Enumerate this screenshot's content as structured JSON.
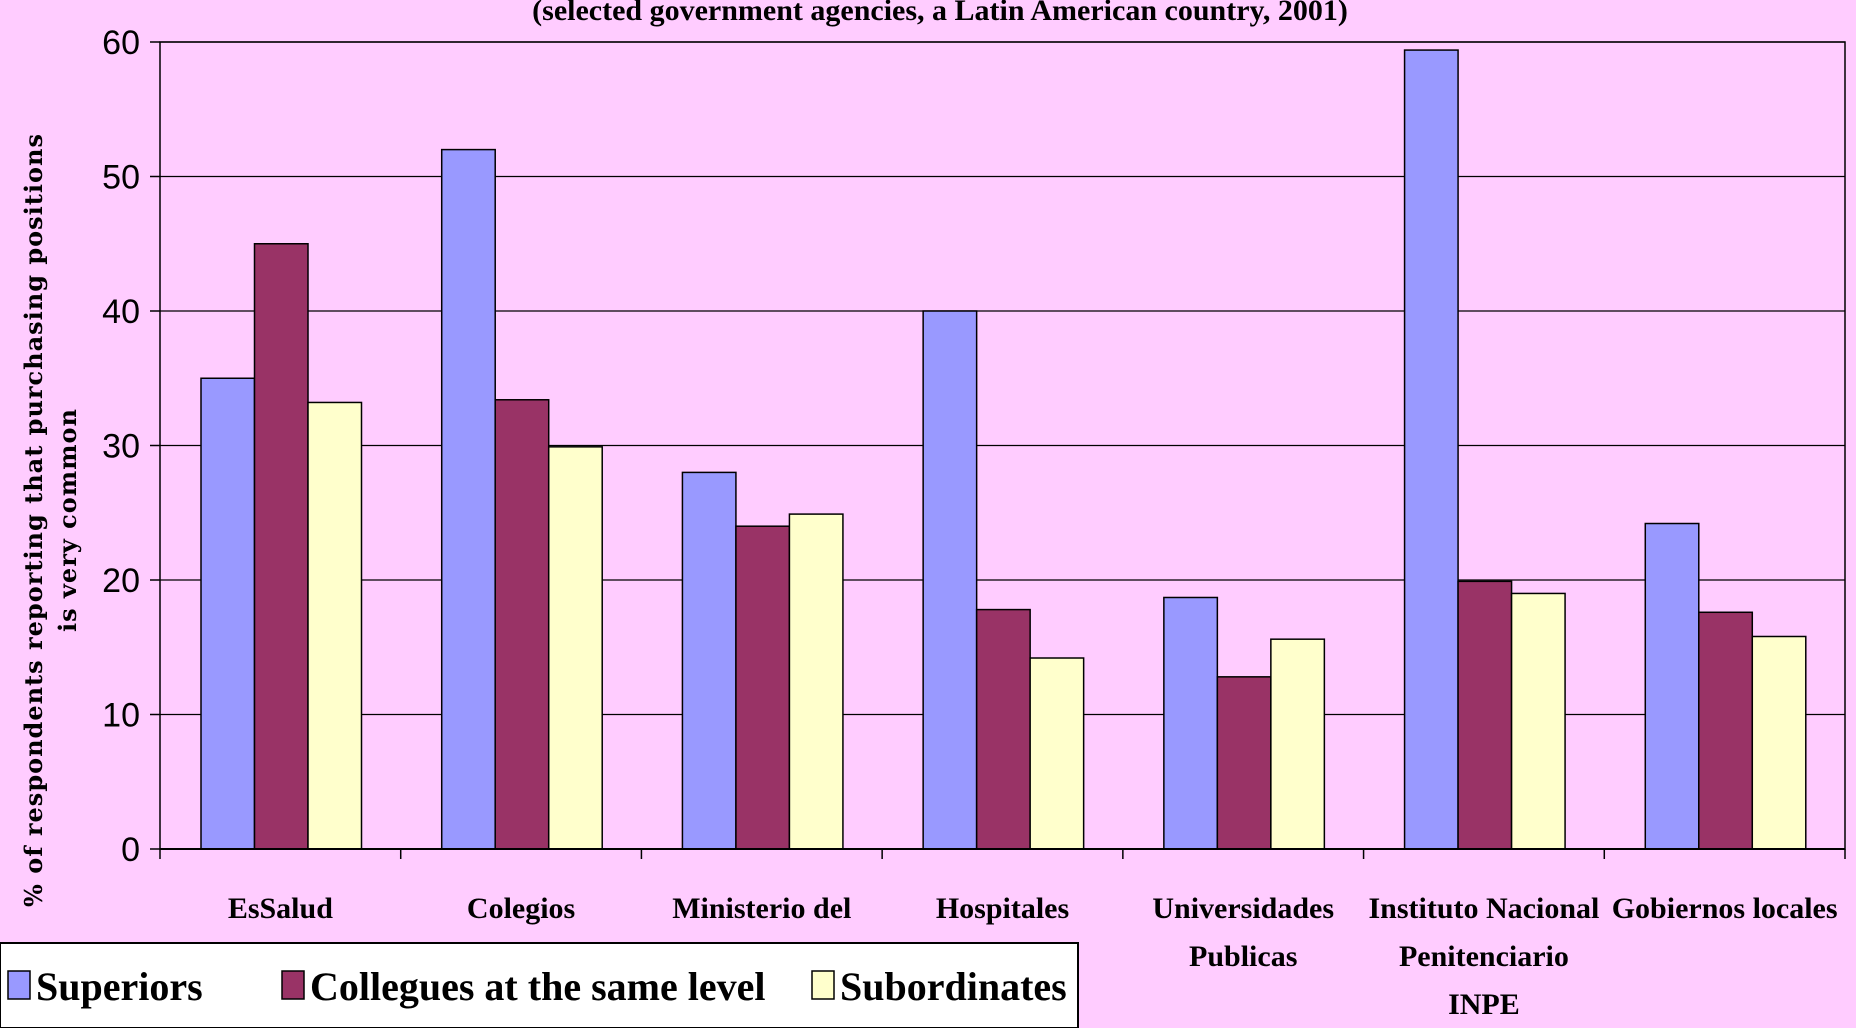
{
  "chart_data": {
    "type": "bar",
    "title": "(selected government agencies, a Latin American country, 2001)",
    "ylabel_lines": [
      "% of respondents reporting that purchasing positions",
      "is very common"
    ],
    "xlabel": "",
    "ylim": [
      0,
      60
    ],
    "yticks": [
      0,
      10,
      20,
      30,
      40,
      50,
      60
    ],
    "grid": true,
    "legend_position": "bottom-left",
    "categories": [
      [
        "EsSalud"
      ],
      [
        "Colegios"
      ],
      [
        "Ministerio del"
      ],
      [
        "Hospitales"
      ],
      [
        "Universidades",
        "Publicas"
      ],
      [
        "Instituto Nacional",
        "Penitenciario",
        "INPE"
      ],
      [
        "Gobiernos locales"
      ]
    ],
    "series": [
      {
        "name": "Superiors",
        "color": "#9999ff",
        "values": [
          35,
          52,
          28,
          40,
          18.7,
          59.4,
          24.2
        ]
      },
      {
        "name": "Collegues at the same level",
        "color": "#993366",
        "values": [
          45,
          33.4,
          24,
          17.8,
          12.8,
          19.9,
          17.6
        ]
      },
      {
        "name": "Subordinates",
        "color": "#ffffcc",
        "values": [
          33.2,
          29.9,
          24.9,
          14.2,
          15.6,
          19,
          15.8
        ]
      }
    ]
  }
}
